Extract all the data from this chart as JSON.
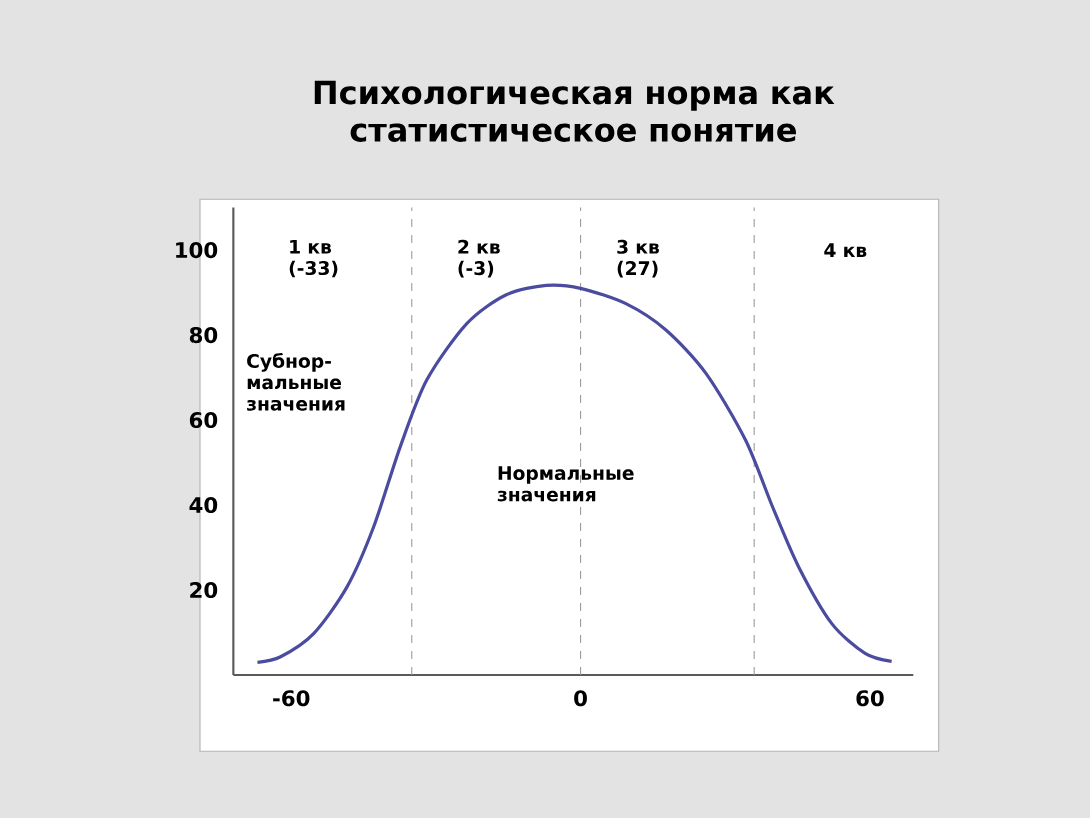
{
  "chart_data": {
    "type": "line",
    "title": "Психологическая норма как статистическое понятие",
    "x": [
      -67,
      -62.2,
      -55.3,
      -48.4,
      -42.9,
      -37.4,
      -31.9,
      -23.6,
      -15.4,
      -7.1,
      0,
      9.4,
      17.7,
      26,
      34.2,
      39.8,
      45.2,
      52.1,
      59,
      64.5
    ],
    "series": [
      {
        "color": "#4b4ba0",
        "values": [
          3,
          4.3,
          9.8,
          20.8,
          34.9,
          53.7,
          69.4,
          82.7,
          89.5,
          91.7,
          91,
          87.4,
          81.2,
          71,
          55.3,
          39.6,
          25.5,
          12.1,
          5.1,
          3.2
        ]
      }
    ],
    "xlim": [
      -72,
      69
    ],
    "ylim": [
      0,
      110
    ],
    "xticks": [
      -60,
      0,
      60
    ],
    "yticks": [
      20,
      40,
      60,
      80,
      100
    ],
    "ref_lines": [
      {
        "axis": "x",
        "value": -35,
        "color": "#999999",
        "line_style": "dashed"
      },
      {
        "axis": "x",
        "value": 0,
        "color": "#999999",
        "line_style": "dashed"
      },
      {
        "axis": "x",
        "value": 36,
        "color": "#999999",
        "line_style": "dashed"
      }
    ],
    "annotations": [
      "1 кв (-33)",
      "2 кв (-3)",
      "3 кв (27)",
      "4 кв",
      "Субнор-мальные значения",
      "Нормальные значения"
    ],
    "marker": "none",
    "line_style": "solid"
  }
}
